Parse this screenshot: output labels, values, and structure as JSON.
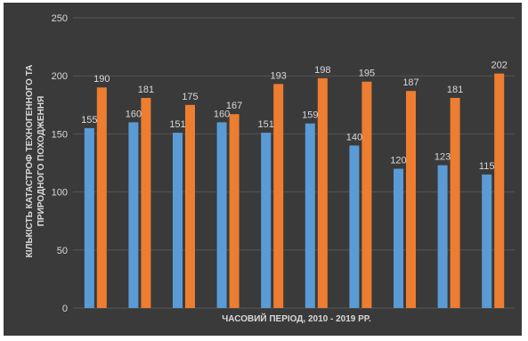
{
  "chart_data": {
    "type": "bar",
    "title": "",
    "xlabel": "ЧАСОВИЙ ПЕРІОД, 2010 - 2019 РР.",
    "ylabel_line1": "КІЛЬКІСТЬ КАТАСТРОФ ТЕХНОГЕННОГО ТА",
    "ylabel_line2": "ПРИРОДНОГО ПОХОДЖЕННЯ",
    "categories": [
      "",
      "",
      "",
      "",
      "",
      "",
      "",
      "",
      "",
      ""
    ],
    "series": [
      {
        "color": "#5b9bd5",
        "values": [
          155,
          160,
          151,
          160,
          151,
          159,
          140,
          120,
          123,
          115
        ]
      },
      {
        "color": "#ed7d31",
        "values": [
          190,
          181,
          175,
          167,
          193,
          198,
          195,
          187,
          181,
          202
        ]
      }
    ],
    "ylim": [
      0,
      250
    ],
    "yticks": [
      0,
      50,
      100,
      150,
      200,
      250
    ],
    "grid": true,
    "legend": "none",
    "background": "#3a3a3a",
    "gridline_color": "#555555",
    "text_color": "#d9d9d9"
  }
}
